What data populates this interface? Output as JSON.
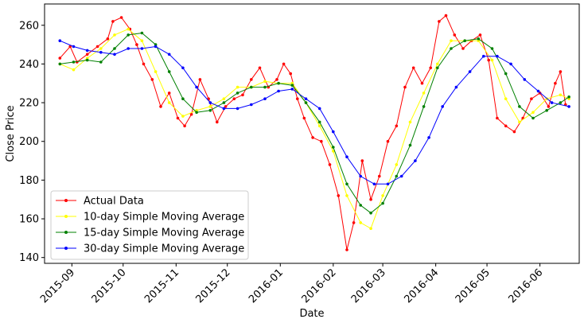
{
  "chart_data": {
    "type": "line",
    "title": "",
    "xlabel": "Date",
    "ylabel": "Close Price",
    "ylim": [
      137,
      271
    ],
    "xlim": [
      "2015-08-16",
      "2016-06-24"
    ],
    "x_ticks": [
      "2015-09",
      "2015-10",
      "2015-11",
      "2015-12",
      "2016-01",
      "2016-02",
      "2016-03",
      "2016-04",
      "2016-05",
      "2016-06"
    ],
    "y_ticks": [
      140,
      160,
      180,
      200,
      220,
      240,
      260
    ],
    "grid": false,
    "legend_position": "lower-left",
    "series": [
      {
        "name": "Actual Data",
        "color": "#ff0000",
        "points": [
          [
            "2015-08-25",
            243
          ],
          [
            "2015-08-31",
            249
          ],
          [
            "2015-09-04",
            241
          ],
          [
            "2015-09-10",
            245
          ],
          [
            "2015-09-16",
            249
          ],
          [
            "2015-09-22",
            253
          ],
          [
            "2015-09-25",
            262
          ],
          [
            "2015-09-30",
            264
          ],
          [
            "2015-10-05",
            258
          ],
          [
            "2015-10-09",
            250
          ],
          [
            "2015-10-13",
            240
          ],
          [
            "2015-10-18",
            232
          ],
          [
            "2015-10-23",
            218
          ],
          [
            "2015-10-28",
            225
          ],
          [
            "2015-11-02",
            212
          ],
          [
            "2015-11-06",
            208
          ],
          [
            "2015-11-10",
            214
          ],
          [
            "2015-11-15",
            232
          ],
          [
            "2015-11-20",
            222
          ],
          [
            "2015-11-25",
            210
          ],
          [
            "2015-11-30",
            218
          ],
          [
            "2015-12-05",
            222
          ],
          [
            "2015-12-10",
            224
          ],
          [
            "2015-12-15",
            232
          ],
          [
            "2015-12-20",
            238
          ],
          [
            "2015-12-25",
            228
          ],
          [
            "2015-12-30",
            232
          ],
          [
            "2016-01-03",
            240
          ],
          [
            "2016-01-07",
            235
          ],
          [
            "2016-01-11",
            222
          ],
          [
            "2016-01-15",
            212
          ],
          [
            "2016-01-20",
            202
          ],
          [
            "2016-01-25",
            200
          ],
          [
            "2016-01-30",
            188
          ],
          [
            "2016-02-04",
            172
          ],
          [
            "2016-02-09",
            144
          ],
          [
            "2016-02-13",
            158
          ],
          [
            "2016-02-18",
            190
          ],
          [
            "2016-02-23",
            170
          ],
          [
            "2016-02-28",
            182
          ],
          [
            "2016-03-04",
            200
          ],
          [
            "2016-03-09",
            208
          ],
          [
            "2016-03-14",
            228
          ],
          [
            "2016-03-19",
            238
          ],
          [
            "2016-03-24",
            230
          ],
          [
            "2016-03-29",
            238
          ],
          [
            "2016-04-03",
            262
          ],
          [
            "2016-04-07",
            265
          ],
          [
            "2016-04-12",
            255
          ],
          [
            "2016-04-17",
            248
          ],
          [
            "2016-04-22",
            252
          ],
          [
            "2016-04-27",
            255
          ],
          [
            "2016-05-02",
            242
          ],
          [
            "2016-05-07",
            212
          ],
          [
            "2016-05-12",
            208
          ],
          [
            "2016-05-17",
            205
          ],
          [
            "2016-05-22",
            212
          ],
          [
            "2016-05-27",
            222
          ],
          [
            "2016-06-01",
            225
          ],
          [
            "2016-06-06",
            218
          ],
          [
            "2016-06-10",
            230
          ],
          [
            "2016-06-13",
            236
          ],
          [
            "2016-06-16",
            219
          ]
        ]
      },
      {
        "name": "10-day Simple Moving Average",
        "color": "#ffff00",
        "points": [
          [
            "2015-08-25",
            240
          ],
          [
            "2015-09-02",
            237
          ],
          [
            "2015-09-10",
            243
          ],
          [
            "2015-09-18",
            248
          ],
          [
            "2015-09-26",
            255
          ],
          [
            "2015-10-04",
            258
          ],
          [
            "2015-10-12",
            252
          ],
          [
            "2015-10-20",
            236
          ],
          [
            "2015-10-28",
            220
          ],
          [
            "2015-11-05",
            213
          ],
          [
            "2015-11-13",
            216
          ],
          [
            "2015-11-21",
            218
          ],
          [
            "2015-11-29",
            222
          ],
          [
            "2015-12-07",
            228
          ],
          [
            "2015-12-15",
            228
          ],
          [
            "2015-12-23",
            231
          ],
          [
            "2015-12-31",
            230
          ],
          [
            "2016-01-08",
            230
          ],
          [
            "2016-01-16",
            220
          ],
          [
            "2016-01-24",
            208
          ],
          [
            "2016-02-01",
            195
          ],
          [
            "2016-02-09",
            172
          ],
          [
            "2016-02-17",
            158
          ],
          [
            "2016-02-23",
            155
          ],
          [
            "2016-03-01",
            172
          ],
          [
            "2016-03-09",
            188
          ],
          [
            "2016-03-17",
            210
          ],
          [
            "2016-03-25",
            225
          ],
          [
            "2016-04-02",
            240
          ],
          [
            "2016-04-10",
            252
          ],
          [
            "2016-04-18",
            252
          ],
          [
            "2016-04-26",
            252
          ],
          [
            "2016-05-04",
            242
          ],
          [
            "2016-05-12",
            222
          ],
          [
            "2016-05-20",
            210
          ],
          [
            "2016-05-28",
            215
          ],
          [
            "2016-06-05",
            222
          ],
          [
            "2016-06-13",
            224
          ],
          [
            "2016-06-18",
            222
          ]
        ]
      },
      {
        "name": "15-day Simple Moving Average",
        "color": "#008000",
        "points": [
          [
            "2015-08-25",
            240
          ],
          [
            "2015-09-02",
            241
          ],
          [
            "2015-09-10",
            242
          ],
          [
            "2015-09-18",
            241
          ],
          [
            "2015-09-26",
            248
          ],
          [
            "2015-10-04",
            255
          ],
          [
            "2015-10-12",
            256
          ],
          [
            "2015-10-20",
            250
          ],
          [
            "2015-10-28",
            236
          ],
          [
            "2015-11-05",
            222
          ],
          [
            "2015-11-13",
            215
          ],
          [
            "2015-11-21",
            216
          ],
          [
            "2015-11-29",
            220
          ],
          [
            "2015-12-07",
            225
          ],
          [
            "2015-12-15",
            228
          ],
          [
            "2015-12-23",
            228
          ],
          [
            "2015-12-31",
            230
          ],
          [
            "2016-01-08",
            229
          ],
          [
            "2016-01-16",
            220
          ],
          [
            "2016-01-24",
            210
          ],
          [
            "2016-02-01",
            197
          ],
          [
            "2016-02-09",
            178
          ],
          [
            "2016-02-17",
            167
          ],
          [
            "2016-02-23",
            163
          ],
          [
            "2016-03-01",
            168
          ],
          [
            "2016-03-09",
            182
          ],
          [
            "2016-03-17",
            198
          ],
          [
            "2016-03-25",
            218
          ],
          [
            "2016-04-02",
            238
          ],
          [
            "2016-04-10",
            248
          ],
          [
            "2016-04-18",
            252
          ],
          [
            "2016-04-26",
            253
          ],
          [
            "2016-05-04",
            248
          ],
          [
            "2016-05-12",
            235
          ],
          [
            "2016-05-20",
            218
          ],
          [
            "2016-05-28",
            212
          ],
          [
            "2016-06-05",
            216
          ],
          [
            "2016-06-13",
            220
          ],
          [
            "2016-06-18",
            223
          ]
        ]
      },
      {
        "name": "30-day Simple Moving Average",
        "color": "#0000ff",
        "points": [
          [
            "2015-08-25",
            252
          ],
          [
            "2015-09-02",
            249
          ],
          [
            "2015-09-10",
            247
          ],
          [
            "2015-09-18",
            246
          ],
          [
            "2015-09-26",
            245
          ],
          [
            "2015-10-04",
            248
          ],
          [
            "2015-10-12",
            248
          ],
          [
            "2015-10-20",
            249
          ],
          [
            "2015-10-28",
            245
          ],
          [
            "2015-11-05",
            238
          ],
          [
            "2015-11-13",
            228
          ],
          [
            "2015-11-21",
            220
          ],
          [
            "2015-11-29",
            217
          ],
          [
            "2015-12-07",
            217
          ],
          [
            "2015-12-15",
            219
          ],
          [
            "2015-12-23",
            222
          ],
          [
            "2015-12-31",
            226
          ],
          [
            "2016-01-08",
            227
          ],
          [
            "2016-01-16",
            222
          ],
          [
            "2016-01-24",
            217
          ],
          [
            "2016-02-01",
            205
          ],
          [
            "2016-02-09",
            192
          ],
          [
            "2016-02-17",
            182
          ],
          [
            "2016-02-25",
            178
          ],
          [
            "2016-03-04",
            178
          ],
          [
            "2016-03-12",
            182
          ],
          [
            "2016-03-20",
            190
          ],
          [
            "2016-03-28",
            202
          ],
          [
            "2016-04-05",
            218
          ],
          [
            "2016-04-13",
            228
          ],
          [
            "2016-04-21",
            236
          ],
          [
            "2016-04-29",
            244
          ],
          [
            "2016-05-07",
            244
          ],
          [
            "2016-05-15",
            240
          ],
          [
            "2016-05-23",
            232
          ],
          [
            "2016-05-31",
            226
          ],
          [
            "2016-06-08",
            220
          ],
          [
            "2016-06-18",
            218
          ]
        ]
      }
    ]
  }
}
